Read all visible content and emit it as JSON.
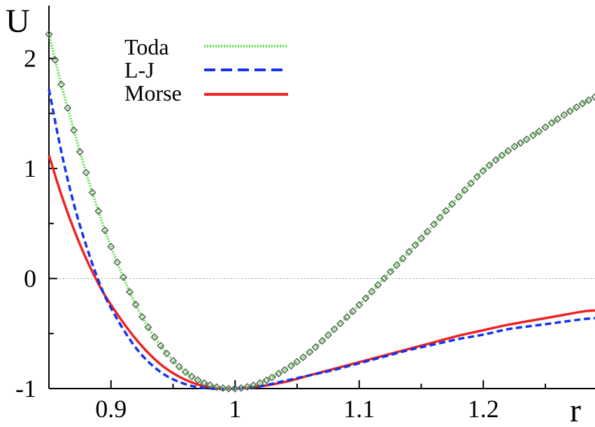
{
  "chart_data": {
    "type": "line",
    "xlabel": "r",
    "ylabel": "U",
    "xlim": [
      0.85,
      1.29
    ],
    "ylim": [
      -1.0,
      2.48
    ],
    "x_ticks": [
      0.9,
      1,
      1.1,
      1.2
    ],
    "x_tick_labels": [
      "0.9",
      "1",
      "1.1",
      "1.2"
    ],
    "y_ticks": [
      -1,
      0,
      1,
      2
    ],
    "y_tick_labels": [
      "-1",
      "0",
      "1",
      "2"
    ],
    "zero_line": true,
    "legend_position": "top-left",
    "colors": {
      "toda": "#66dd55",
      "lj": "#1133ee",
      "morse": "#ee2222",
      "markers": "#556655"
    },
    "series": [
      {
        "name": "Toda",
        "style": "dotted",
        "x": [
          0.85,
          0.86,
          0.87,
          0.88,
          0.89,
          0.9,
          0.92,
          0.94,
          0.96,
          0.98,
          1.0,
          1.02,
          1.04,
          1.06,
          1.08,
          1.1,
          1.12,
          1.14,
          1.16,
          1.18,
          1.2,
          1.22,
          1.24,
          1.26,
          1.28,
          1.29
        ],
        "y": [
          2.22,
          1.76,
          1.35,
          0.96,
          0.61,
          0.29,
          -0.24,
          -0.61,
          -0.85,
          -0.97,
          -1.0,
          -0.95,
          -0.83,
          -0.67,
          -0.46,
          -0.24,
          0.0,
          0.24,
          0.49,
          0.74,
          0.98,
          1.16,
          1.3,
          1.45,
          1.59,
          1.65
        ]
      },
      {
        "name": "L-J",
        "style": "dashed",
        "x": [
          0.85,
          0.86,
          0.87,
          0.88,
          0.89,
          0.9,
          0.92,
          0.94,
          0.96,
          0.98,
          1.0,
          1.02,
          1.04,
          1.06,
          1.08,
          1.1,
          1.12,
          1.14,
          1.16,
          1.18,
          1.2,
          1.22,
          1.24,
          1.26,
          1.28,
          1.29
        ],
        "y": [
          1.72,
          1.15,
          0.68,
          0.3,
          -0.02,
          -0.27,
          -0.63,
          -0.85,
          -0.96,
          -1.0,
          -1.0,
          -0.98,
          -0.93,
          -0.88,
          -0.83,
          -0.77,
          -0.71,
          -0.65,
          -0.6,
          -0.55,
          -0.51,
          -0.46,
          -0.43,
          -0.4,
          -0.37,
          -0.36
        ]
      },
      {
        "name": "Morse",
        "style": "solid",
        "x": [
          0.85,
          0.86,
          0.87,
          0.88,
          0.89,
          0.9,
          0.92,
          0.94,
          0.96,
          0.98,
          1.0,
          1.02,
          1.04,
          1.06,
          1.08,
          1.1,
          1.12,
          1.14,
          1.16,
          1.18,
          1.2,
          1.22,
          1.24,
          1.26,
          1.28,
          1.29
        ],
        "y": [
          1.12,
          0.76,
          0.45,
          0.18,
          -0.05,
          -0.24,
          -0.55,
          -0.78,
          -0.92,
          -0.99,
          -1.0,
          -0.98,
          -0.94,
          -0.88,
          -0.82,
          -0.76,
          -0.7,
          -0.64,
          -0.58,
          -0.52,
          -0.47,
          -0.42,
          -0.38,
          -0.34,
          -0.3,
          -0.29
        ]
      }
    ],
    "markers": {
      "style": "open-diamond",
      "x_start": 0.85,
      "x_end": 1.29,
      "x_step": 0.005
    }
  }
}
